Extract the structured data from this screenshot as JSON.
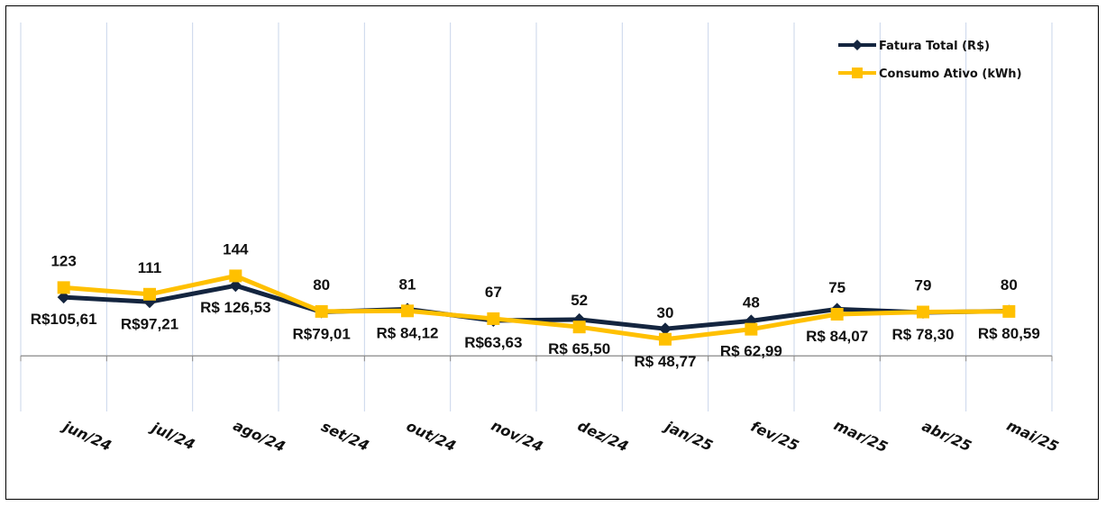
{
  "chart_data": {
    "type": "line",
    "title": "",
    "xlabel": "",
    "ylabel": "",
    "ylim": [
      -100,
      600
    ],
    "grid": "vertical",
    "legend_position": "top-right",
    "categories": [
      "jun/24",
      "jul/24",
      "ago/24",
      "set/24",
      "out/24",
      "nov/24",
      "dez/24",
      "jan/25",
      "fev/25",
      "mar/25",
      "abr/25",
      "mai/25"
    ],
    "series": [
      {
        "name": "Fatura Total (R$)",
        "color": "#14253f",
        "marker": "diamond",
        "values": [
          105.61,
          97.21,
          126.53,
          79.01,
          84.12,
          63.63,
          65.5,
          48.77,
          62.99,
          84.07,
          78.3,
          80.59
        ],
        "labels": [
          "R$105,61",
          "R$97,21",
          "R$ 126,53",
          "R$79,01",
          "R$ 84,12",
          "R$63,63",
          "R$ 65,50",
          "R$ 48,77",
          "R$ 62,99",
          "R$ 84,07",
          "R$ 78,30",
          "R$ 80,59"
        ]
      },
      {
        "name": "Consumo Ativo (kWh)",
        "color": "#ffc000",
        "marker": "square",
        "values": [
          123,
          111,
          144,
          80,
          81,
          67,
          52,
          30,
          48,
          75,
          79,
          80
        ],
        "labels": [
          "123",
          "111",
          "144",
          "80",
          "81",
          "67",
          "52",
          "30",
          "48",
          "75",
          "79",
          "80"
        ]
      }
    ]
  }
}
